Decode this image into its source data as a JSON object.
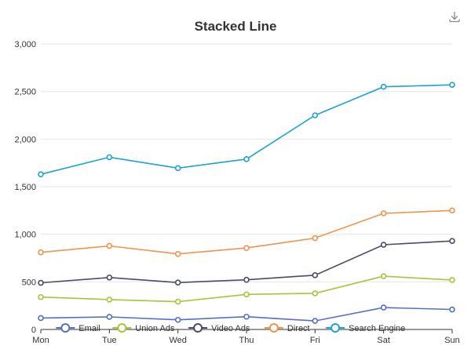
{
  "chart_data": {
    "type": "line",
    "stacked": true,
    "title": "Stacked Line",
    "categories": [
      "Mon",
      "Tue",
      "Wed",
      "Thu",
      "Fri",
      "Sat",
      "Sun"
    ],
    "y_ticks": [
      "0",
      "500",
      "1,000",
      "1,500",
      "2,000",
      "2,500",
      "3,000"
    ],
    "ylim": [
      0,
      3000
    ],
    "grid": true,
    "legend_position": "bottom",
    "series": [
      {
        "name": "Email",
        "color": "#5470c6",
        "values": [
          120,
          132,
          101,
          134,
          90,
          230,
          210
        ]
      },
      {
        "name": "Union Ads",
        "color": "#a4c639",
        "values": [
          220,
          182,
          191,
          234,
          290,
          330,
          310
        ]
      },
      {
        "name": "Video Ads",
        "color": "#4a4a6a",
        "values": [
          150,
          232,
          201,
          154,
          190,
          330,
          410
        ]
      },
      {
        "name": "Direct",
        "color": "#f0944d",
        "values": [
          320,
          332,
          301,
          334,
          390,
          330,
          320
        ]
      },
      {
        "name": "Search Engine",
        "color": "#1ea3d3",
        "values": [
          820,
          932,
          901,
          934,
          1290,
          1330,
          1320
        ]
      }
    ]
  },
  "toolbar": {
    "download_icon": "download-icon"
  }
}
